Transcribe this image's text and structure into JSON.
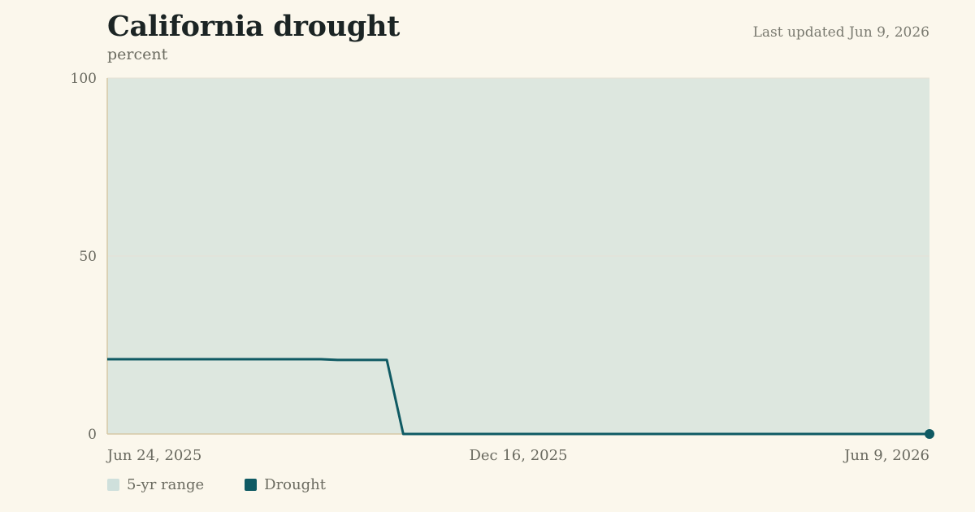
{
  "header": {
    "title": "California drought",
    "subtitle": "percent",
    "updated": "Last updated Jun 9, 2026"
  },
  "legend": [
    {
      "label": "5-yr range",
      "color": "#cfe0dc"
    },
    {
      "label": "Drought",
      "color": "#0f5a63"
    }
  ],
  "chart_data": {
    "type": "line",
    "ylabel": "percent",
    "ylim": [
      0,
      100
    ],
    "yticks": [
      0,
      50,
      100
    ],
    "xlim": [
      "2025-06-24",
      "2026-06-09"
    ],
    "xticks": [
      {
        "date": "2025-06-24",
        "label": "Jun 24, 2025"
      },
      {
        "date": "2025-12-16",
        "label": "Dec 16, 2025"
      },
      {
        "date": "2026-06-09",
        "label": "Jun 9, 2026"
      }
    ],
    "band": {
      "name": "5-yr range",
      "low": 0,
      "high": 100,
      "color": "#dde7df"
    },
    "series": [
      {
        "name": "Drought",
        "color": "#0f5a63",
        "points": [
          [
            "2025-06-24",
            21
          ],
          [
            "2025-09-23",
            21
          ],
          [
            "2025-09-30",
            20.8
          ],
          [
            "2025-10-21",
            20.8
          ],
          [
            "2025-10-28",
            0
          ],
          [
            "2026-06-09",
            0
          ]
        ]
      }
    ],
    "grid": true,
    "legend_position": "bottom-left"
  }
}
